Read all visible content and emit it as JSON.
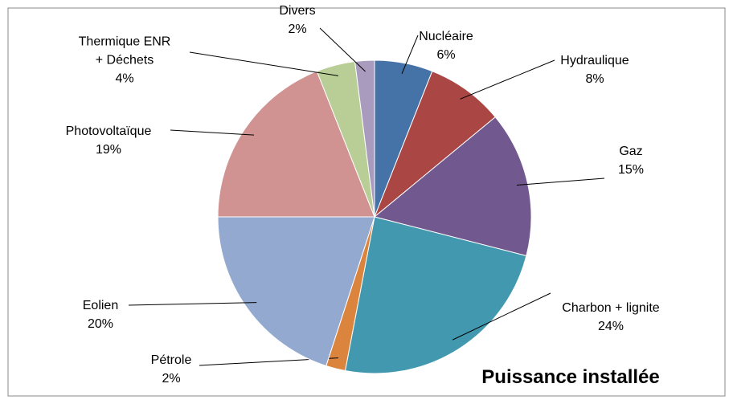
{
  "chart_data": {
    "type": "pie",
    "title": "Puissance installée",
    "categories": [
      "Nucléaire",
      "Hydraulique",
      "Gaz",
      "Charbon + lignite",
      "Pétrole",
      "Eolien",
      "Photovoltaïque",
      "Thermique ENR + Déchets",
      "Divers"
    ],
    "values": [
      6,
      8,
      15,
      24,
      2,
      20,
      19,
      4,
      2
    ],
    "value_labels": [
      "6%",
      "8%",
      "15%",
      "24%",
      "2%",
      "20%",
      "19%",
      "4%",
      "2%"
    ],
    "colors": [
      "#4572a7",
      "#aa4643",
      "#71588f",
      "#4198af",
      "#db843d",
      "#93a9cf",
      "#d19392",
      "#b9cd96",
      "#a99bbd"
    ]
  }
}
